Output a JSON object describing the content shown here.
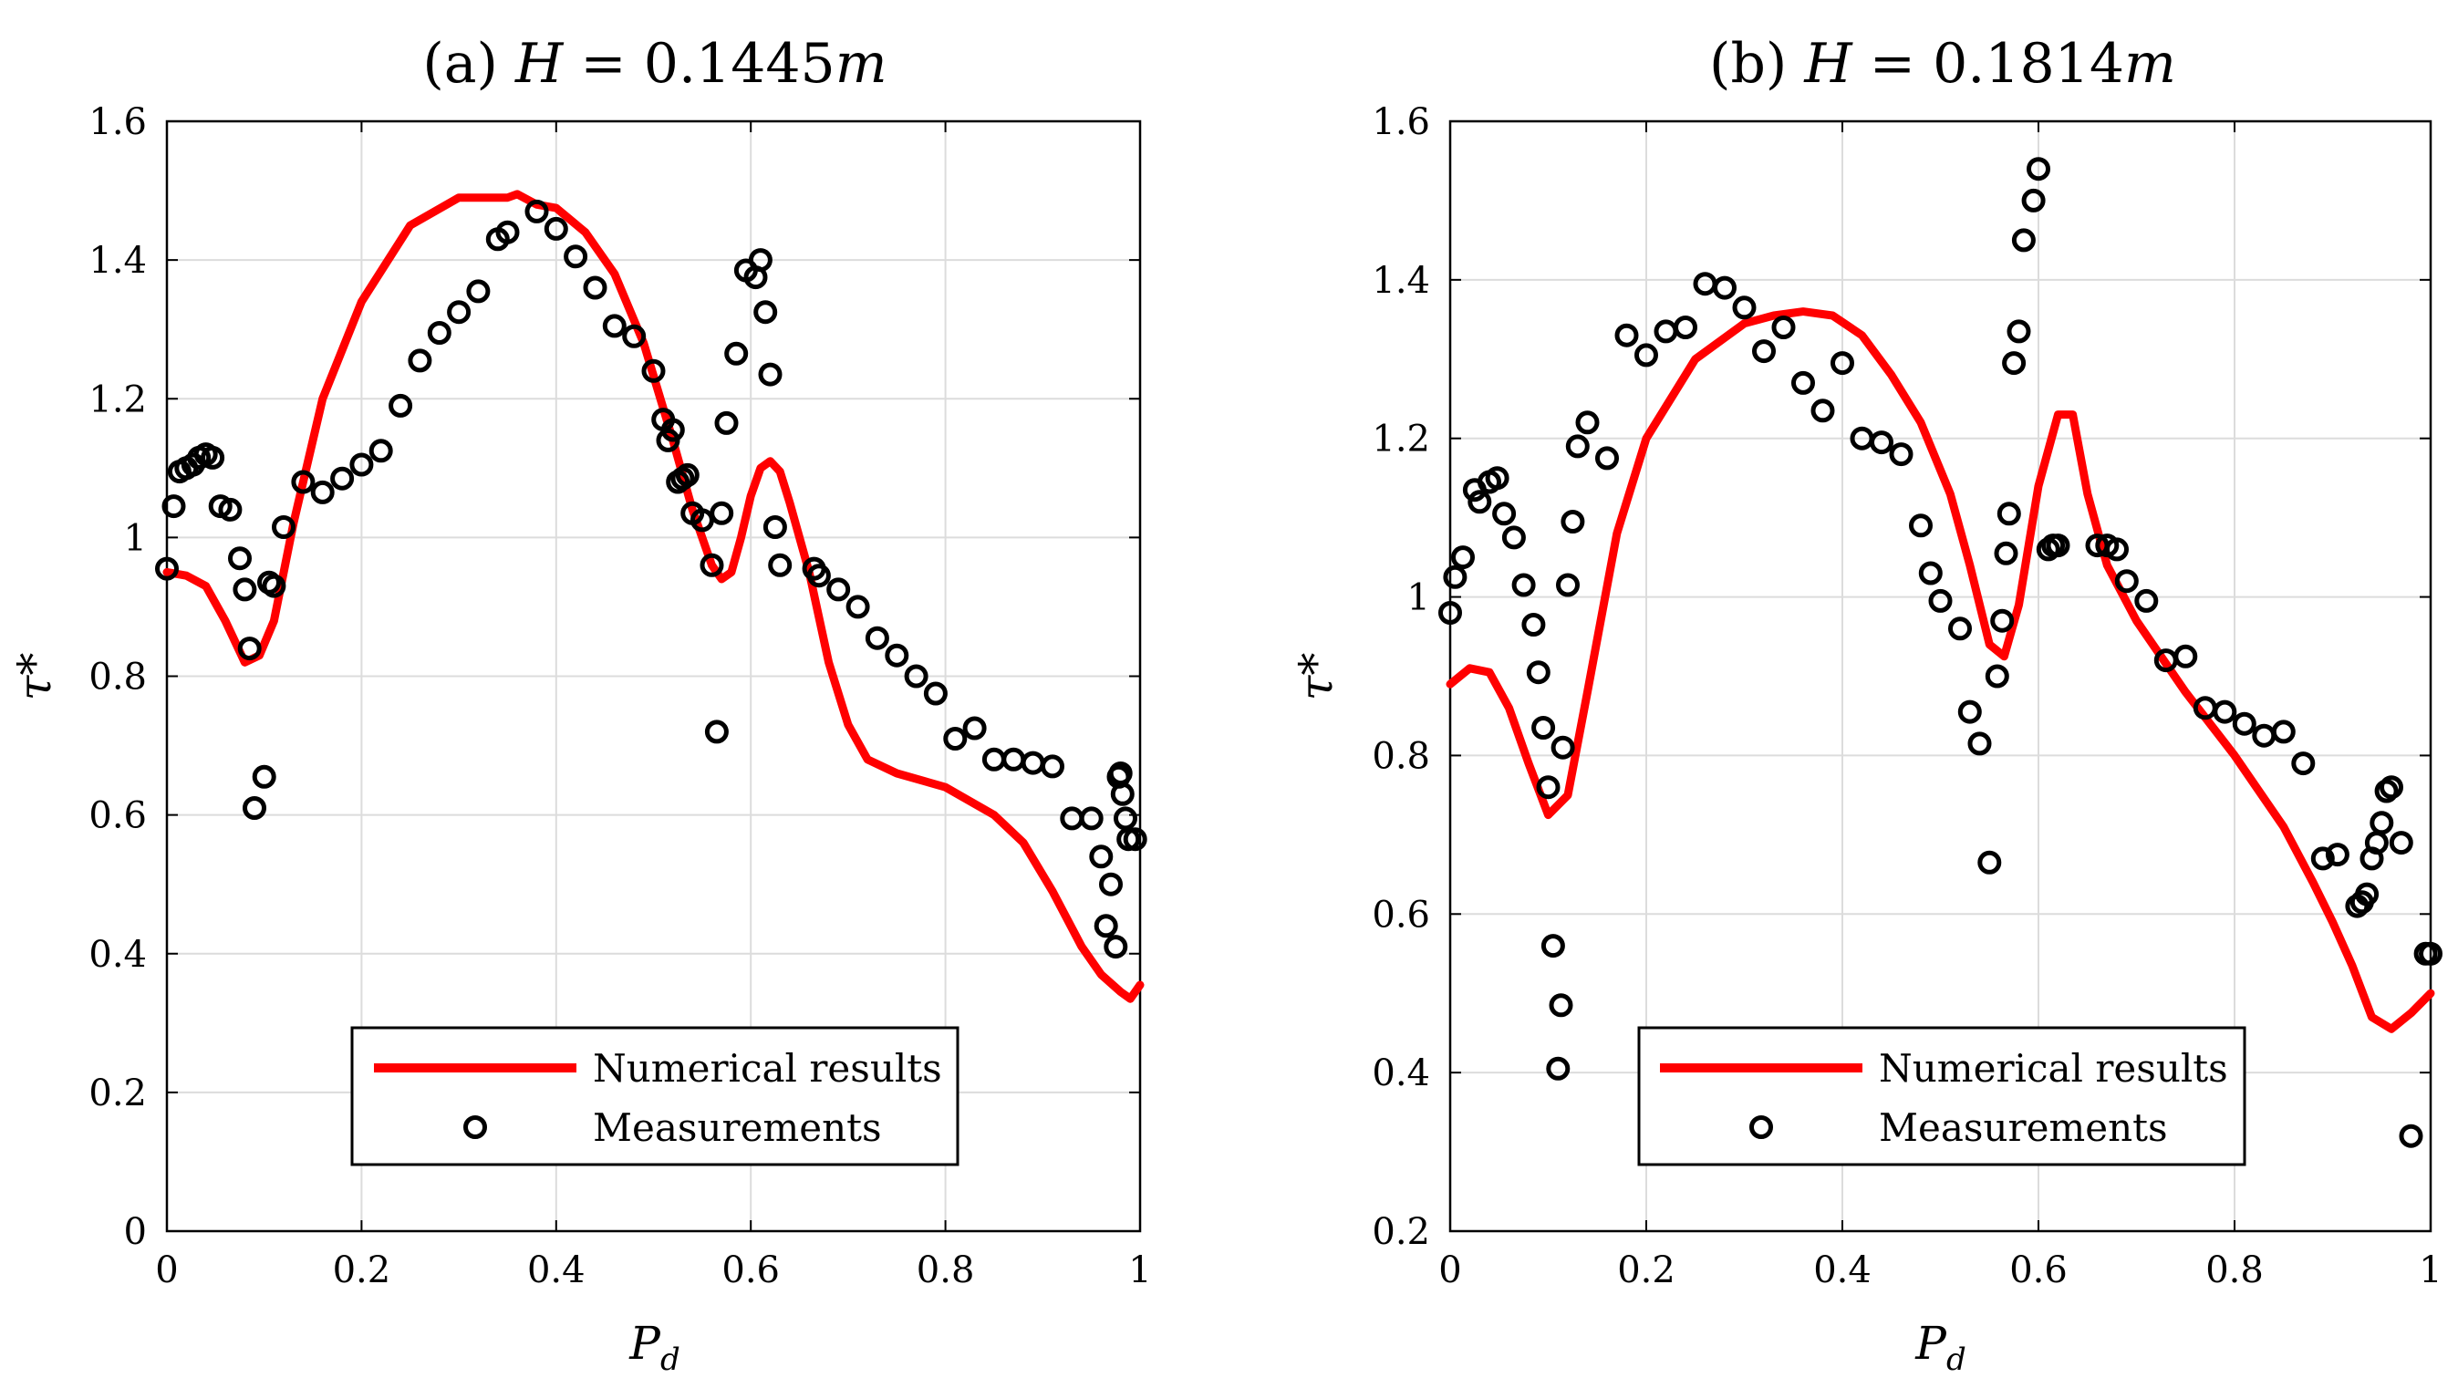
{
  "chart_data": [
    {
      "type": "line+scatter",
      "title": "(a) H = 0.1445m",
      "title_parts": {
        "prefix": "(a) ",
        "var": "H",
        "rest": " = 0.1445",
        "unit": "m"
      },
      "xlabel": "Pd",
      "xlabel_parts": {
        "main": "P",
        "sub": "d"
      },
      "ylabel": "τ*",
      "xlim": [
        0,
        1
      ],
      "ylim": [
        0,
        1.6
      ],
      "xticks": [
        0,
        0.2,
        0.4,
        0.6,
        0.8,
        1
      ],
      "xtick_labels": [
        "0",
        "0.2",
        "0.4",
        "0.6",
        "0.8",
        "1"
      ],
      "yticks": [
        0,
        0.2,
        0.4,
        0.6,
        0.8,
        1,
        1.2,
        1.4,
        1.6
      ],
      "ytick_labels": [
        "0",
        "0.2",
        "0.4",
        "0.6",
        "0.8",
        "1",
        "1.2",
        "1.4",
        "1.6"
      ],
      "grid": true,
      "legend": {
        "position": "bottom-center",
        "entries": [
          "Numerical results",
          "Measurements"
        ]
      },
      "series": [
        {
          "name": "Numerical results",
          "kind": "line",
          "color": "#ff0000",
          "x": [
            0,
            0.02,
            0.04,
            0.06,
            0.08,
            0.095,
            0.11,
            0.13,
            0.16,
            0.2,
            0.25,
            0.3,
            0.32,
            0.35,
            0.36,
            0.38,
            0.4,
            0.43,
            0.46,
            0.49,
            0.52,
            0.54,
            0.56,
            0.57,
            0.58,
            0.59,
            0.6,
            0.61,
            0.62,
            0.63,
            0.64,
            0.66,
            0.68,
            0.7,
            0.72,
            0.75,
            0.8,
            0.85,
            0.88,
            0.91,
            0.94,
            0.96,
            0.98,
            0.99,
            1.0
          ],
          "y": [
            0.95,
            0.945,
            0.93,
            0.88,
            0.82,
            0.83,
            0.88,
            1.02,
            1.2,
            1.34,
            1.45,
            1.49,
            1.49,
            1.49,
            1.495,
            1.48,
            1.475,
            1.44,
            1.38,
            1.28,
            1.14,
            1.04,
            0.96,
            0.94,
            0.95,
            1.0,
            1.06,
            1.1,
            1.11,
            1.095,
            1.05,
            0.95,
            0.82,
            0.73,
            0.68,
            0.66,
            0.64,
            0.6,
            0.56,
            0.49,
            0.41,
            0.37,
            0.345,
            0.335,
            0.355
          ]
        },
        {
          "name": "Measurements",
          "kind": "scatter",
          "color": "#000000",
          "x": [
            0.0,
            0.007,
            0.013,
            0.02,
            0.027,
            0.033,
            0.04,
            0.047,
            0.055,
            0.065,
            0.075,
            0.08,
            0.085,
            0.09,
            0.1,
            0.105,
            0.11,
            0.12,
            0.14,
            0.16,
            0.18,
            0.2,
            0.22,
            0.24,
            0.26,
            0.28,
            0.3,
            0.32,
            0.34,
            0.35,
            0.38,
            0.4,
            0.42,
            0.44,
            0.46,
            0.48,
            0.5,
            0.51,
            0.515,
            0.52,
            0.525,
            0.53,
            0.535,
            0.54,
            0.55,
            0.56,
            0.565,
            0.57,
            0.575,
            0.585,
            0.595,
            0.605,
            0.61,
            0.615,
            0.62,
            0.625,
            0.63,
            0.665,
            0.67,
            0.69,
            0.71,
            0.73,
            0.75,
            0.77,
            0.79,
            0.81,
            0.83,
            0.85,
            0.87,
            0.89,
            0.91,
            0.93,
            0.95,
            0.96,
            0.965,
            0.97,
            0.975,
            0.978,
            0.98,
            0.982,
            0.985,
            0.988,
            0.995
          ],
          "y": [
            0.955,
            1.045,
            1.095,
            1.1,
            1.105,
            1.115,
            1.12,
            1.115,
            1.045,
            1.04,
            0.97,
            0.925,
            0.84,
            0.61,
            0.655,
            0.935,
            0.93,
            1.015,
            1.08,
            1.065,
            1.085,
            1.105,
            1.125,
            1.19,
            1.255,
            1.295,
            1.325,
            1.355,
            1.43,
            1.44,
            1.47,
            1.445,
            1.405,
            1.36,
            1.305,
            1.29,
            1.24,
            1.17,
            1.14,
            1.155,
            1.08,
            1.085,
            1.09,
            1.035,
            1.025,
            0.96,
            0.72,
            1.035,
            1.165,
            1.265,
            1.385,
            1.375,
            1.4,
            1.325,
            1.235,
            1.015,
            0.96,
            0.955,
            0.945,
            0.925,
            0.9,
            0.855,
            0.83,
            0.8,
            0.775,
            0.71,
            0.725,
            0.68,
            0.68,
            0.675,
            0.67,
            0.595,
            0.595,
            0.54,
            0.44,
            0.5,
            0.41,
            0.655,
            0.66,
            0.63,
            0.595,
            0.565,
            0.565
          ]
        }
      ]
    },
    {
      "type": "line+scatter",
      "title": "(b) H = 0.1814m",
      "title_parts": {
        "prefix": "(b) ",
        "var": "H",
        "rest": " = 0.1814",
        "unit": "m"
      },
      "xlabel": "Pd",
      "xlabel_parts": {
        "main": "P",
        "sub": "d"
      },
      "ylabel": "τ*",
      "xlim": [
        0,
        1
      ],
      "ylim": [
        0.2,
        1.6
      ],
      "xticks": [
        0,
        0.2,
        0.4,
        0.6,
        0.8,
        1
      ],
      "xtick_labels": [
        "0",
        "0.2",
        "0.4",
        "0.6",
        "0.8",
        "1"
      ],
      "yticks": [
        0.2,
        0.4,
        0.6,
        0.8,
        1,
        1.2,
        1.4,
        1.6
      ],
      "ytick_labels": [
        "0.2",
        "0.4",
        "0.6",
        "0.8",
        "1",
        "1.2",
        "1.4",
        "1.6"
      ],
      "grid": true,
      "legend": {
        "position": "bottom-center",
        "entries": [
          "Numerical results",
          "Measurements"
        ]
      },
      "series": [
        {
          "name": "Numerical results",
          "kind": "line",
          "color": "#ff0000",
          "x": [
            0,
            0.02,
            0.04,
            0.06,
            0.08,
            0.1,
            0.12,
            0.14,
            0.17,
            0.2,
            0.25,
            0.3,
            0.33,
            0.36,
            0.39,
            0.42,
            0.45,
            0.48,
            0.51,
            0.53,
            0.55,
            0.565,
            0.58,
            0.6,
            0.62,
            0.635,
            0.65,
            0.67,
            0.7,
            0.75,
            0.8,
            0.85,
            0.88,
            0.9,
            0.92,
            0.94,
            0.96,
            0.98,
            1.0
          ],
          "y": [
            0.89,
            0.91,
            0.905,
            0.86,
            0.79,
            0.725,
            0.75,
            0.88,
            1.08,
            1.2,
            1.3,
            1.345,
            1.355,
            1.36,
            1.355,
            1.33,
            1.28,
            1.22,
            1.13,
            1.04,
            0.94,
            0.925,
            0.99,
            1.14,
            1.23,
            1.23,
            1.13,
            1.04,
            0.97,
            0.88,
            0.8,
            0.71,
            0.64,
            0.59,
            0.535,
            0.47,
            0.455,
            0.475,
            0.5
          ]
        },
        {
          "name": "Measurements",
          "kind": "scatter",
          "color": "#000000",
          "x": [
            0.0,
            0.005,
            0.013,
            0.025,
            0.03,
            0.04,
            0.048,
            0.055,
            0.065,
            0.075,
            0.085,
            0.09,
            0.095,
            0.1,
            0.105,
            0.11,
            0.113,
            0.115,
            0.12,
            0.125,
            0.13,
            0.14,
            0.16,
            0.18,
            0.2,
            0.22,
            0.24,
            0.26,
            0.28,
            0.3,
            0.32,
            0.34,
            0.36,
            0.38,
            0.4,
            0.42,
            0.44,
            0.46,
            0.48,
            0.49,
            0.5,
            0.52,
            0.53,
            0.54,
            0.55,
            0.558,
            0.563,
            0.567,
            0.57,
            0.575,
            0.58,
            0.585,
            0.595,
            0.6,
            0.61,
            0.615,
            0.62,
            0.66,
            0.67,
            0.68,
            0.69,
            0.71,
            0.73,
            0.75,
            0.77,
            0.79,
            0.81,
            0.83,
            0.85,
            0.87,
            0.89,
            0.905,
            0.925,
            0.93,
            0.935,
            0.94,
            0.945,
            0.95,
            0.955,
            0.96,
            0.97,
            0.98,
            0.995,
            1.0
          ],
          "y": [
            0.98,
            1.025,
            1.05,
            1.135,
            1.12,
            1.145,
            1.15,
            1.105,
            1.075,
            1.015,
            0.965,
            0.905,
            0.835,
            0.76,
            0.56,
            0.405,
            0.485,
            0.81,
            1.015,
            1.095,
            1.19,
            1.22,
            1.175,
            1.33,
            1.305,
            1.335,
            1.34,
            1.395,
            1.39,
            1.365,
            1.31,
            1.34,
            1.27,
            1.235,
            1.295,
            1.2,
            1.195,
            1.18,
            1.09,
            1.03,
            0.995,
            0.96,
            0.855,
            0.815,
            0.665,
            0.9,
            0.97,
            1.055,
            1.105,
            1.295,
            1.335,
            1.45,
            1.5,
            1.54,
            1.06,
            1.065,
            1.065,
            1.065,
            1.065,
            1.06,
            1.02,
            0.995,
            0.92,
            0.925,
            0.86,
            0.855,
            0.84,
            0.825,
            0.83,
            0.79,
            0.67,
            0.675,
            0.61,
            0.615,
            0.625,
            0.67,
            0.69,
            0.715,
            0.755,
            0.76,
            0.69,
            0.32,
            0.55,
            0.55
          ]
        }
      ]
    }
  ]
}
